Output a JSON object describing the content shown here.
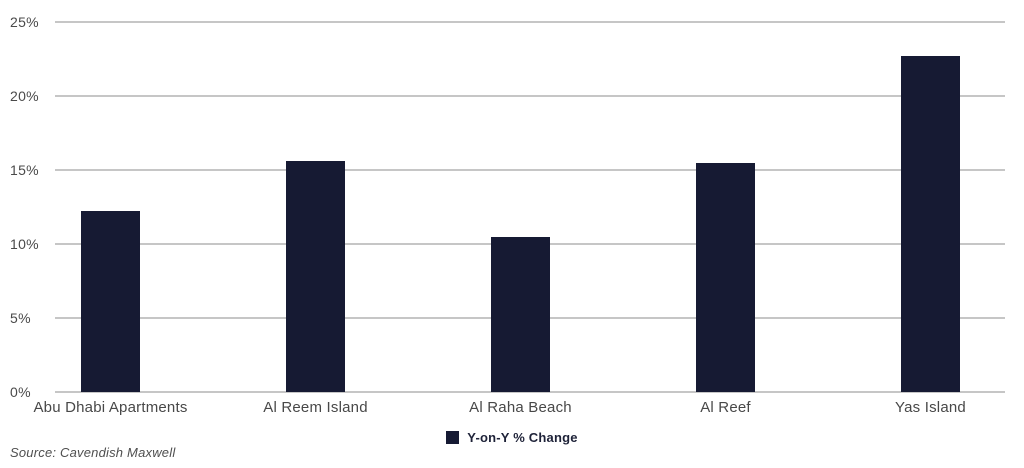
{
  "chart_data": {
    "type": "bar",
    "categories": [
      "Abu Dhabi Apartments",
      "Al Reem Island",
      "Al Raha Beach",
      "Al Reef",
      "Yas Island"
    ],
    "series": [
      {
        "name": "Y-on-Y % Change",
        "values": [
          12.2,
          15.6,
          10.5,
          15.5,
          22.7
        ]
      }
    ],
    "title": "",
    "xlabel": "",
    "ylabel": "",
    "ylim": [
      0,
      25
    ],
    "ytick_step": 5,
    "ytick_labels": [
      "0%",
      "5%",
      "10%",
      "15%",
      "20%",
      "25%"
    ],
    "grid": true,
    "legend_position": "bottom-center",
    "bar_color": "#161a33"
  },
  "legend": {
    "label": "Y-on-Y % Change"
  },
  "source": {
    "text": "Source: Cavendish Maxwell"
  },
  "colors": {
    "bar": "#161a33",
    "gridline": "#c6c6c6",
    "tick_text": "#4a4a4a",
    "category_text": "#484848",
    "legend_text": "#1e2238",
    "source_text": "#4f4f4f"
  }
}
